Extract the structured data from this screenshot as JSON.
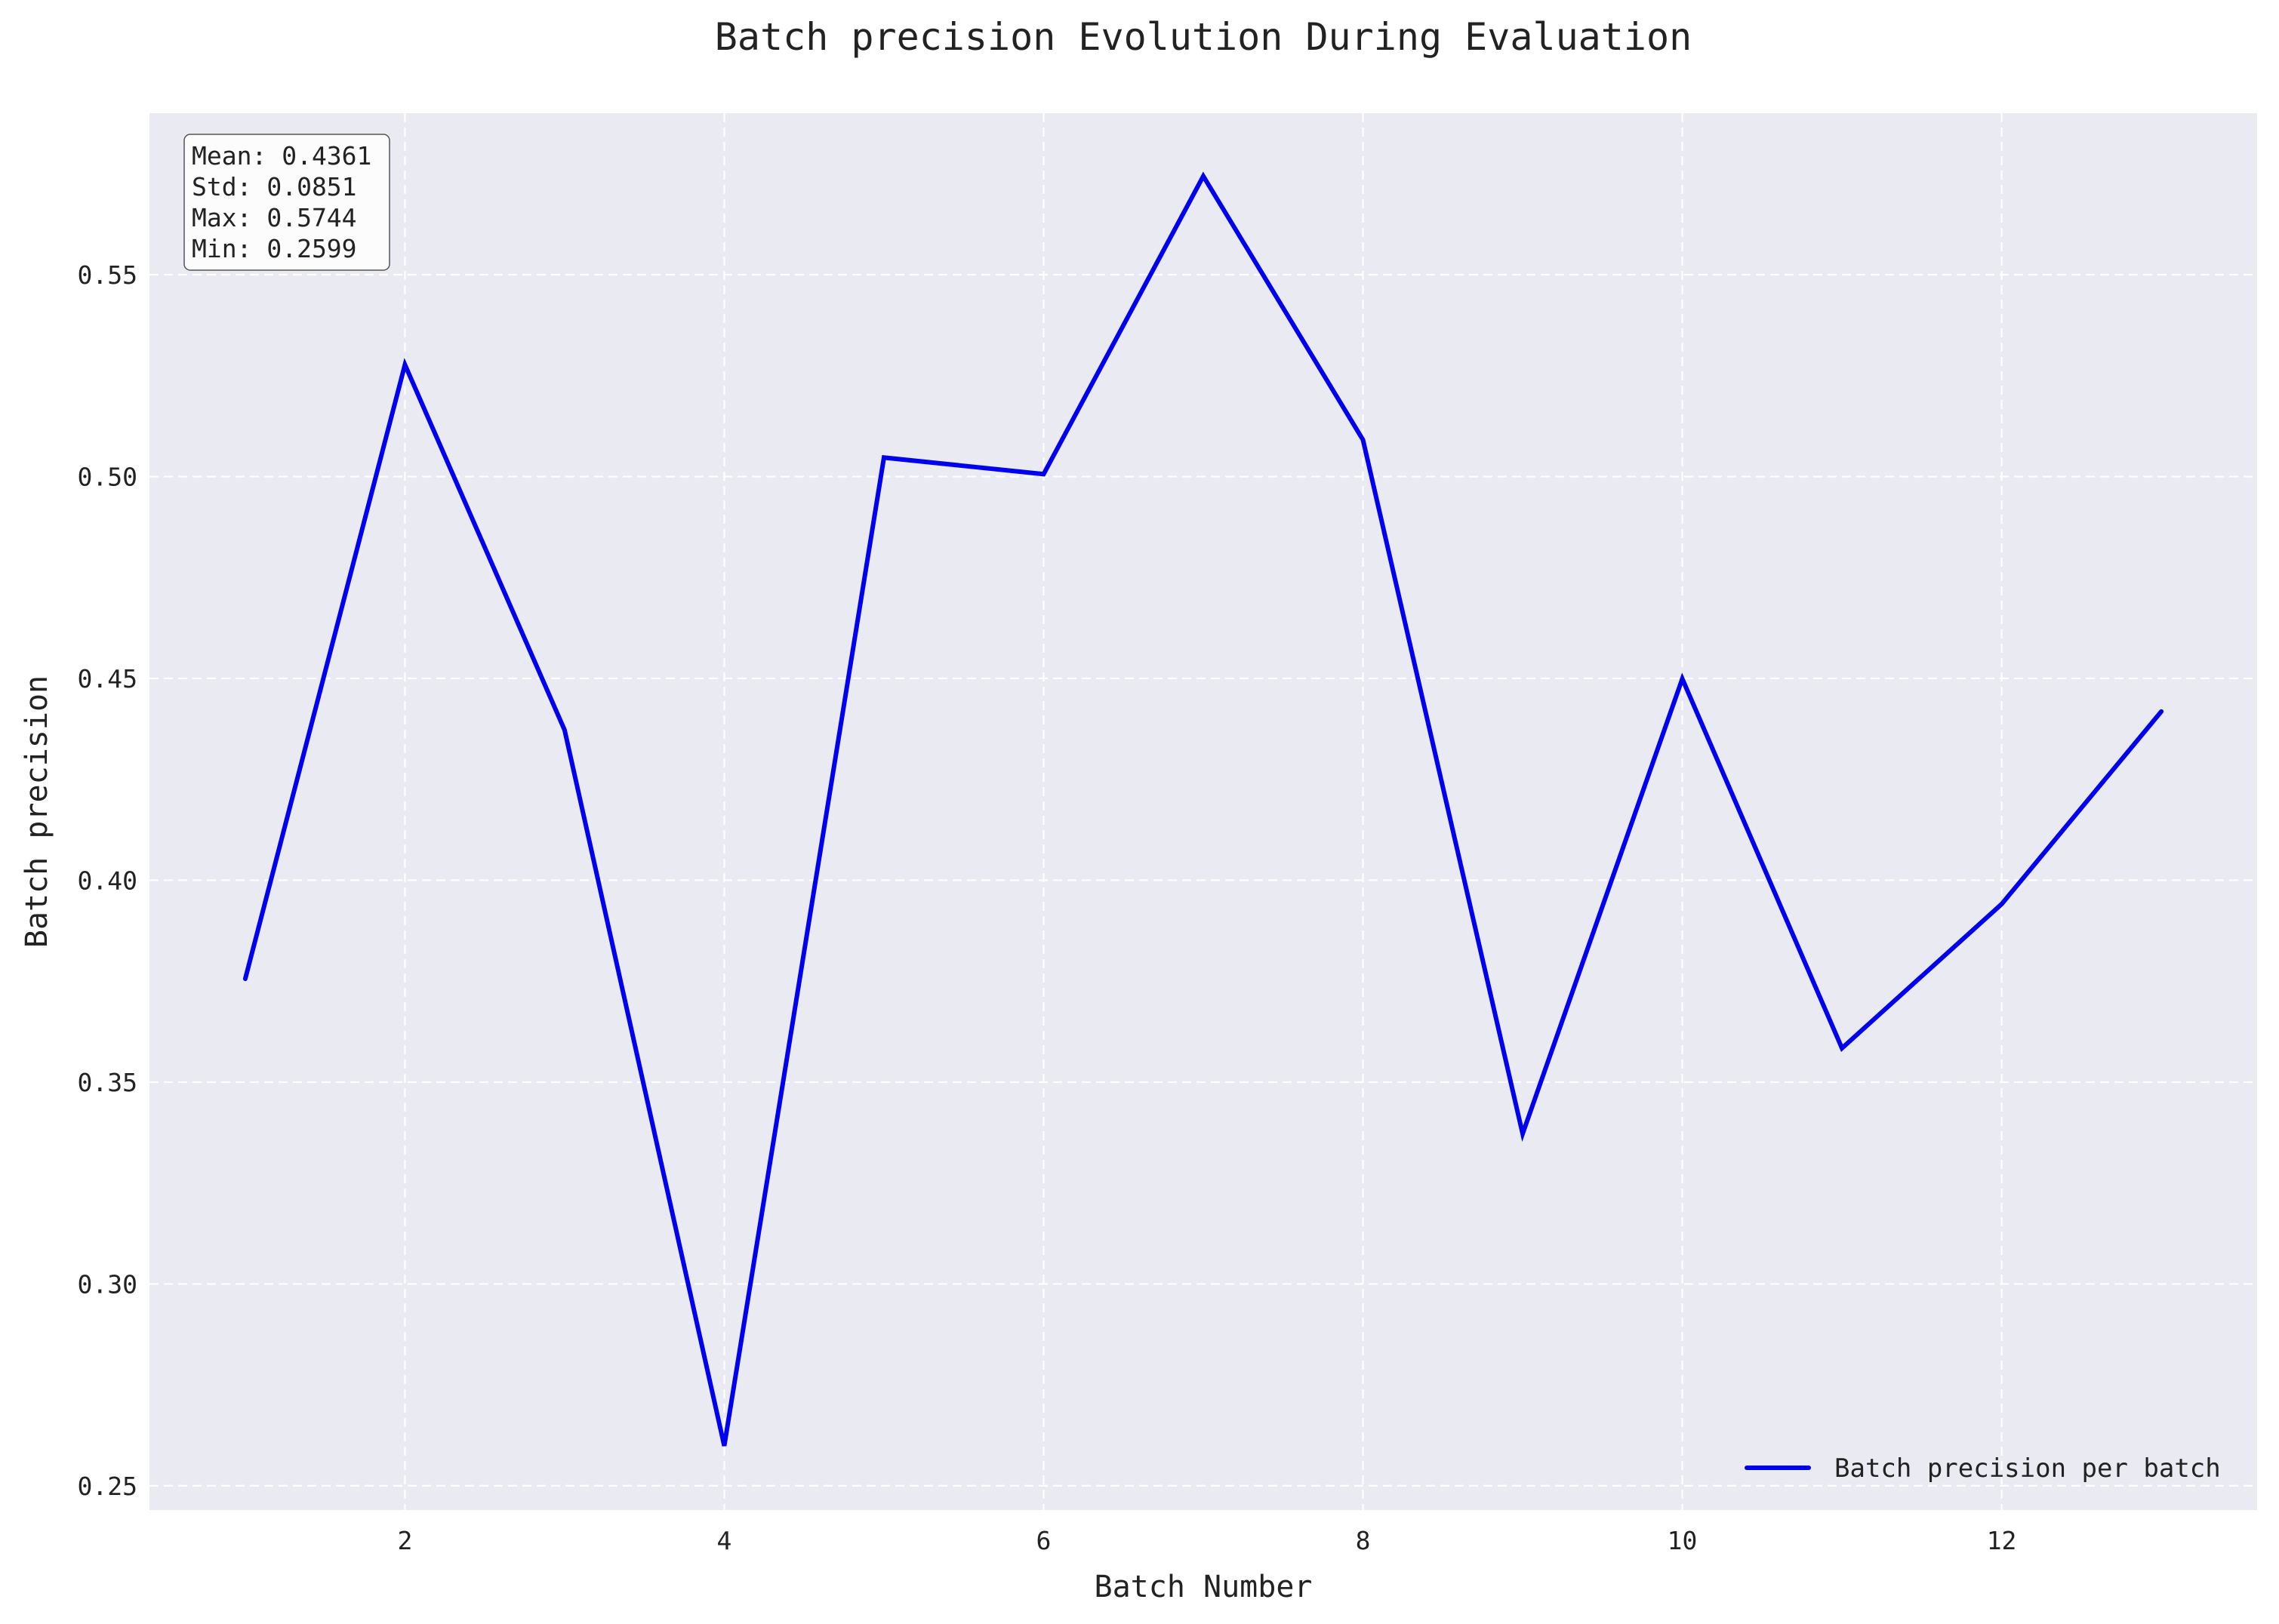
{
  "chart_data": {
    "type": "line",
    "title": "Batch precision Evolution During Evaluation",
    "xlabel": "Batch Number",
    "ylabel": "Batch precision",
    "x": [
      1,
      2,
      3,
      4,
      5,
      6,
      7,
      8,
      9,
      10,
      11,
      12,
      13
    ],
    "series": [
      {
        "name": "Batch precision per batch",
        "color": "#0000ee",
        "values": [
          0.3756,
          0.5277,
          0.4372,
          0.2599,
          0.5047,
          0.5006,
          0.5744,
          0.5091,
          0.3372,
          0.4499,
          0.3584,
          0.3941,
          0.4418
        ]
      }
    ],
    "xlim": [
      0.4,
      13.6
    ],
    "ylim": [
      0.244,
      0.59
    ],
    "xticks": [
      2,
      4,
      6,
      8,
      10,
      12
    ],
    "xtick_labels": [
      "2",
      "4",
      "6",
      "8",
      "10",
      "12"
    ],
    "yticks": [
      0.25,
      0.3,
      0.35,
      0.4,
      0.45,
      0.5,
      0.55
    ],
    "ytick_labels": [
      "0.25",
      "0.30",
      "0.35",
      "0.40",
      "0.45",
      "0.50",
      "0.55"
    ],
    "grid": true,
    "grid_style": "dashed",
    "plot_background": "#eaeaf2",
    "legend_position": "lower-right",
    "stats_box": {
      "position": "top-left",
      "lines": [
        "Mean: 0.4361",
        "Std: 0.0851",
        "Max: 0.5744",
        "Min: 0.2599"
      ]
    }
  }
}
